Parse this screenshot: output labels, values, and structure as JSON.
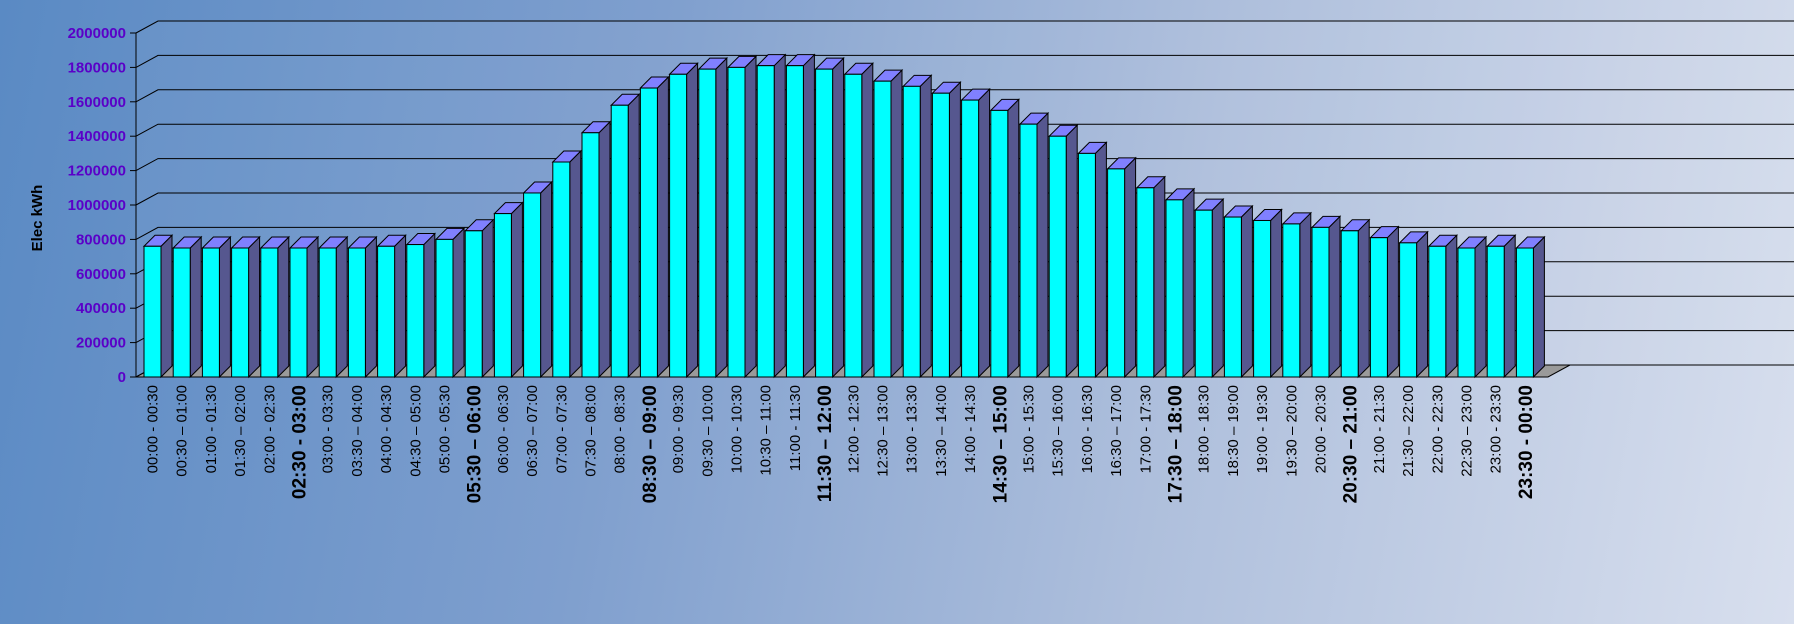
{
  "chart_data": {
    "type": "bar",
    "ylabel": "Elec kWh",
    "xlabel": "",
    "ylim": [
      0,
      2000000
    ],
    "yticks": [
      "0",
      "200000",
      "400000",
      "600000",
      "800000",
      "1000000",
      "1200000",
      "1400000",
      "1600000",
      "1800000",
      "2000000"
    ],
    "categories": [
      "00:00 - 00:30",
      "00:30 – 01:00",
      "01:00 - 01:30",
      "01:30 – 02:00",
      "02:00 - 02:30",
      "02:30 - 03:00",
      "03:00 - 03:30",
      "03:30 – 04:00",
      "04:00 - 04:30",
      "04:30 – 05:00",
      "05:00 - 05:30",
      "05:30 – 06:00",
      "06:00 - 06:30",
      "06:30 – 07:00",
      "07:00 - 07:30",
      "07:30 – 08:00",
      "08:00 - 08:30",
      "08:30 – 09:00",
      "09:00 - 09:30",
      "09:30 – 10:00",
      "10:00 - 10:30",
      "10:30 – 11:00",
      "11:00 - 11:30",
      "11:30 – 12:00",
      "12:00 - 12:30",
      "12:30 – 13:00",
      "13:00 - 13:30",
      "13:30 – 14:00",
      "14:00 - 14:30",
      "14:30 – 15:00",
      "15:00 - 15:30",
      "15:30 – 16:00",
      "16:00 - 16:30",
      "16:30 – 17:00",
      "17:00 - 17:30",
      "17:30 – 18:00",
      "18:00 - 18:30",
      "18:30 – 19:00",
      "19:00 - 19:30",
      "19:30 – 20:00",
      "20:00 - 20:30",
      "20:30 – 21:00",
      "21:00 - 21:30",
      "21:30 – 22:00",
      "22:00 - 22:30",
      "22:30 – 23:00",
      "23:00 - 23:30",
      "23:30 - 00:00"
    ],
    "emphasized_categories": [
      5,
      11,
      17,
      23,
      29,
      35,
      41,
      47
    ],
    "values": [
      760000,
      750000,
      750000,
      750000,
      750000,
      750000,
      750000,
      750000,
      760000,
      770000,
      800000,
      850000,
      950000,
      1070000,
      1250000,
      1420000,
      1580000,
      1680000,
      1760000,
      1790000,
      1800000,
      1810000,
      1810000,
      1790000,
      1760000,
      1720000,
      1690000,
      1650000,
      1610000,
      1550000,
      1470000,
      1400000,
      1300000,
      1210000,
      1100000,
      1030000,
      970000,
      930000,
      910000,
      890000,
      870000,
      850000,
      810000,
      780000,
      760000,
      750000,
      760000,
      750000
    ],
    "grid": true,
    "style": "3d",
    "colors": {
      "bar_front": "#00ffff",
      "bar_top": "#8080ff",
      "bar_side": "#56578f",
      "axis_label": "#5a00c8",
      "gridline": "#000000"
    }
  }
}
